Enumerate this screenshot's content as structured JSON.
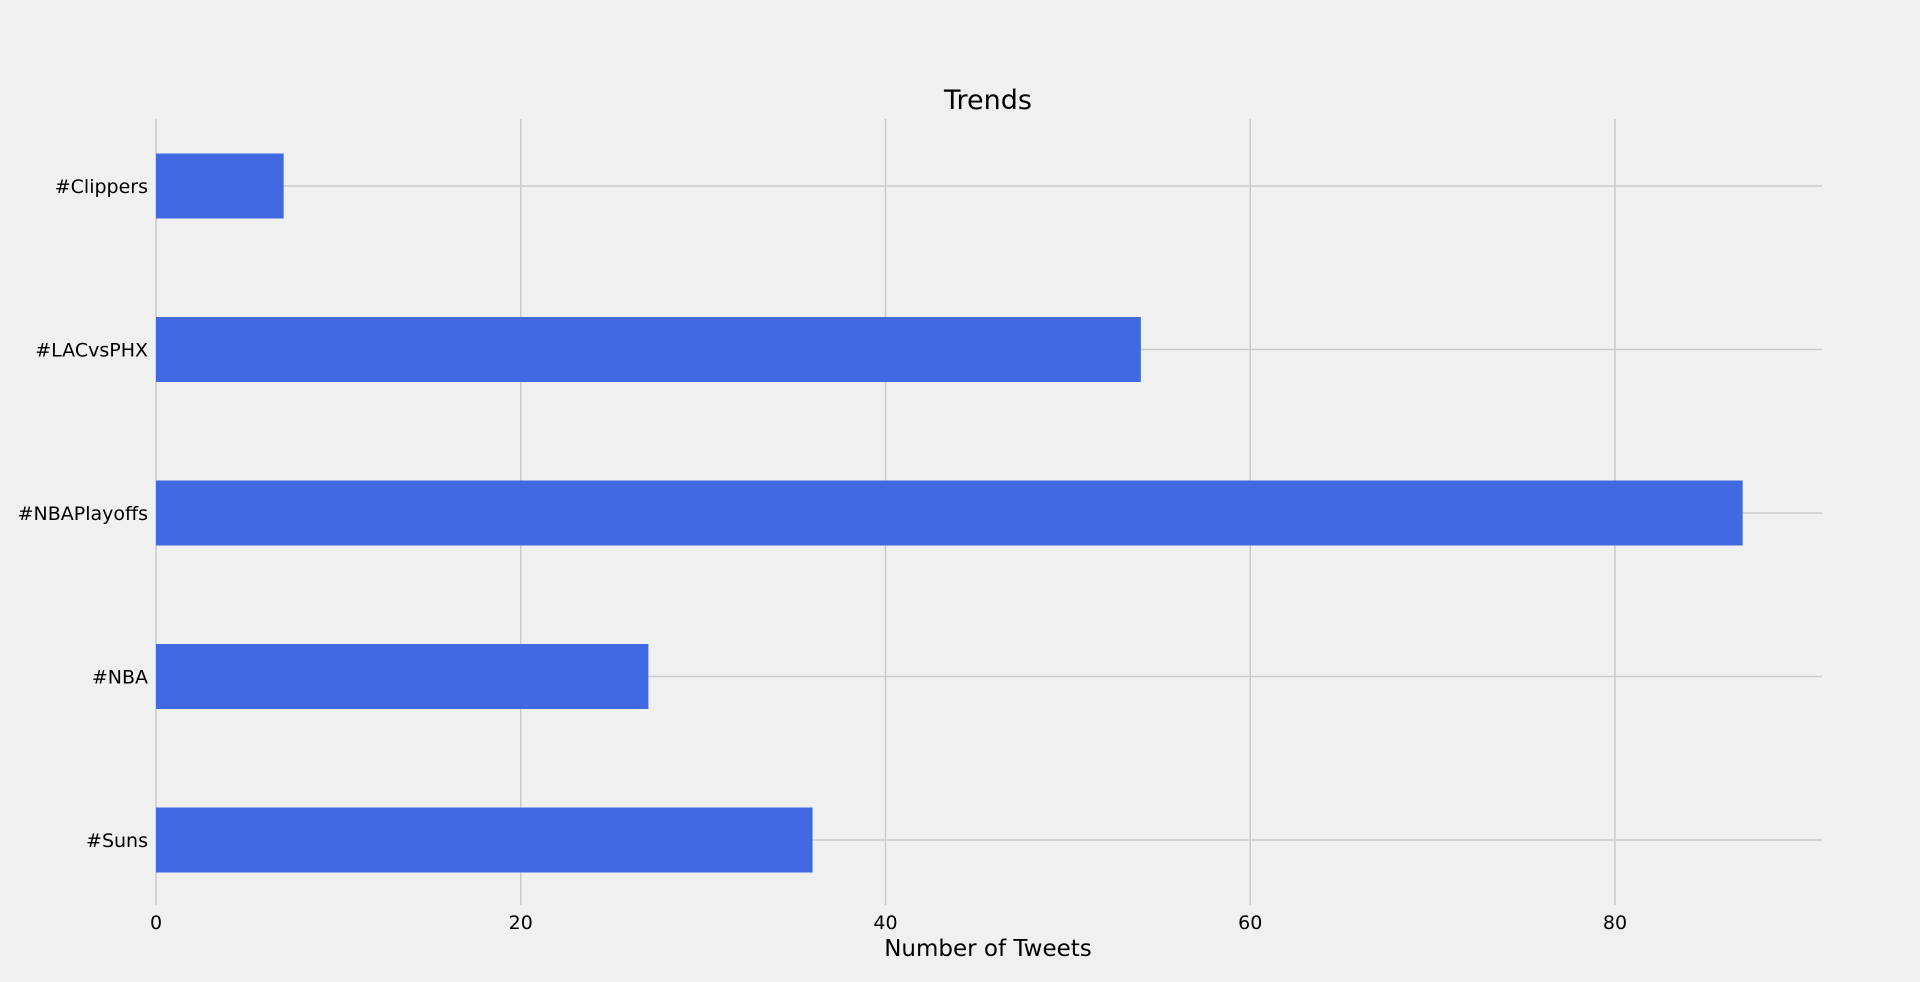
{
  "chart_data": {
    "type": "bar",
    "orientation": "horizontal",
    "title": "Trends",
    "xlabel": "Number of Tweets",
    "ylabel": "",
    "categories": [
      "#Suns",
      "#NBA",
      "#NBAPlayoffs",
      "#LACvsPHX",
      "#Clippers"
    ],
    "values": [
      36,
      27,
      87,
      54,
      7
    ],
    "xlim": [
      0,
      91.35
    ],
    "xticks": [
      0,
      20,
      40,
      60,
      80
    ],
    "xtick_labels": [
      "0",
      "20",
      "40",
      "60",
      "80"
    ],
    "grid": true,
    "legend": "none",
    "colors": {
      "bar": "#4169e1",
      "background": "#f0f0f0",
      "grid": "#cbcbcb"
    }
  }
}
